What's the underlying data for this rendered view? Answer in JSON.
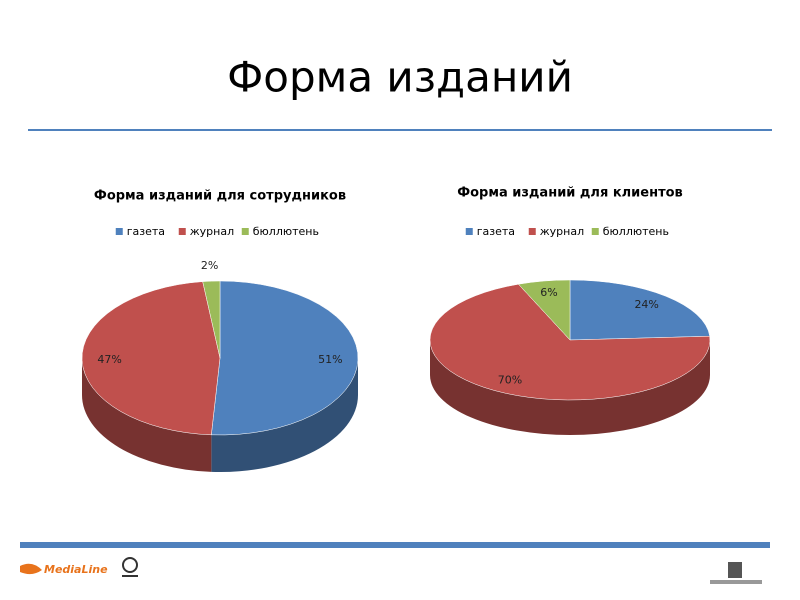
{
  "slide": {
    "title": "Форма изданий"
  },
  "footer": {
    "logo": "MediaLine"
  },
  "chart_data": [
    {
      "type": "pie",
      "title": "Форма изданий для сотрудников",
      "categories": [
        "газета",
        "журнал",
        "бюллютень"
      ],
      "values": [
        51,
        47,
        2
      ],
      "value_labels": [
        "51%",
        "47%",
        "2%"
      ],
      "colors": [
        "#4f81bd",
        "#c0504d",
        "#9bbb59"
      ],
      "legend": "top"
    },
    {
      "type": "pie",
      "title": "Форма изданий для клиентов",
      "categories": [
        "газета",
        "журнал",
        "бюллютень"
      ],
      "values": [
        24,
        70,
        6
      ],
      "value_labels": [
        "24%",
        "70%",
        "6%"
      ],
      "colors": [
        "#4f81bd",
        "#c0504d",
        "#9bbb59"
      ],
      "legend": "top"
    }
  ]
}
